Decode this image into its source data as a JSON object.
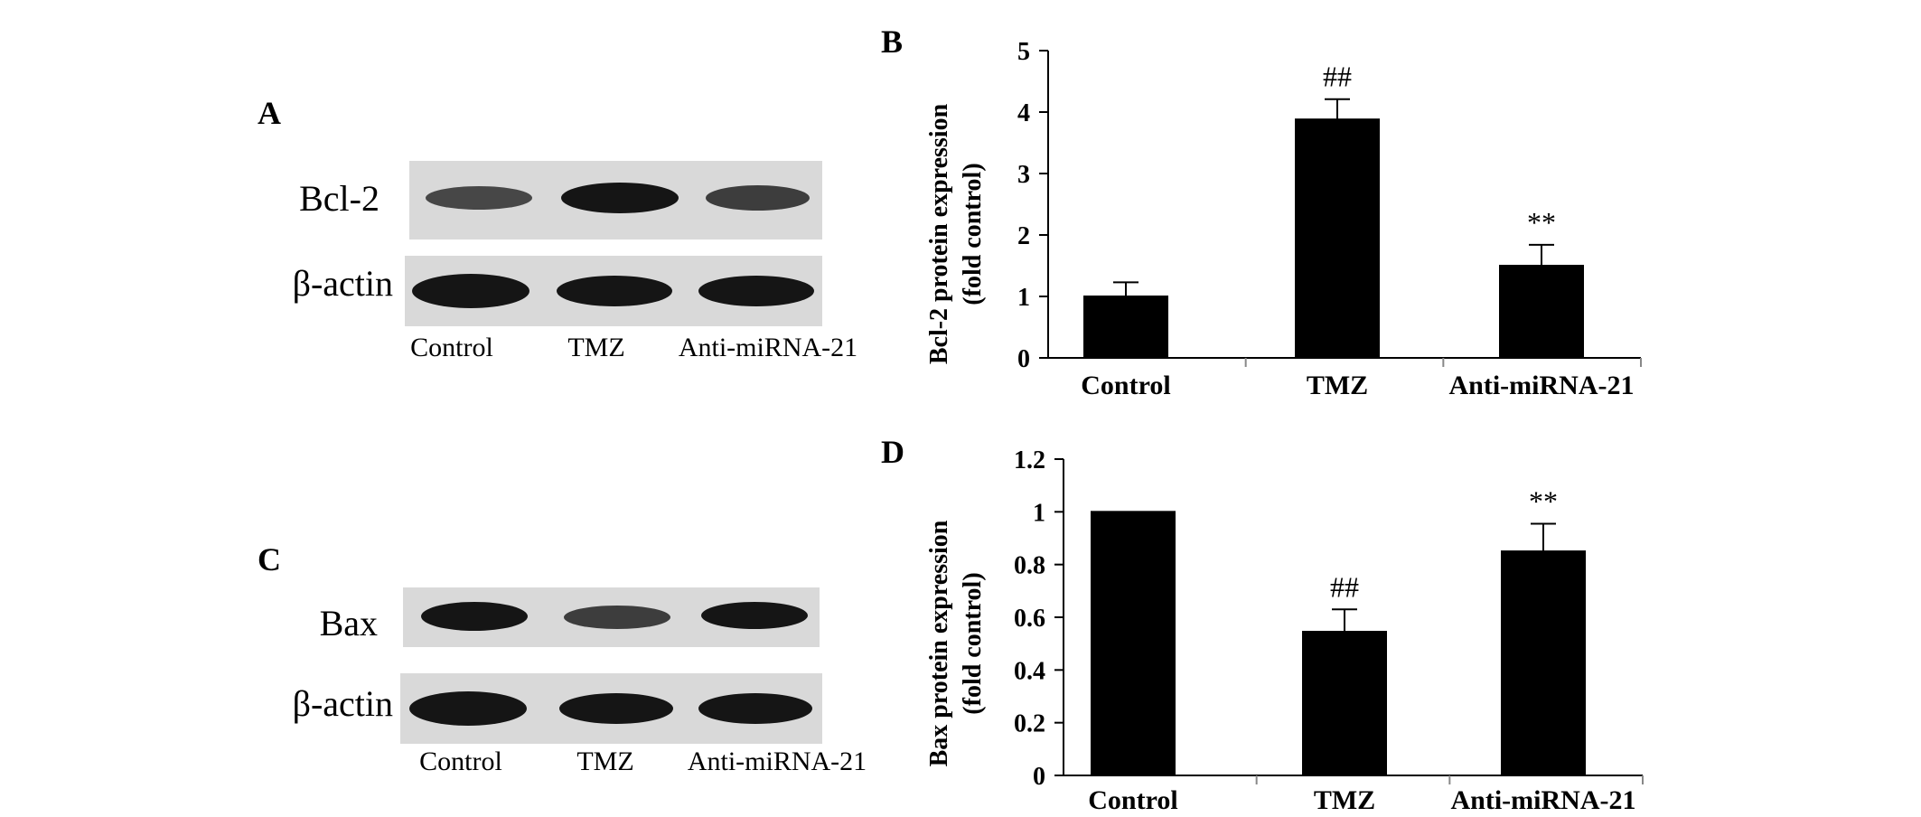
{
  "panels": {
    "a": {
      "letter": "A",
      "protein_label": "Bcl-2",
      "loading_label": "β-actin",
      "lanes": [
        "Control",
        "TMZ",
        "Anti-miRNA-21"
      ]
    },
    "c": {
      "letter": "C",
      "protein_label": "Bax",
      "loading_label": "β-actin",
      "lanes": [
        "Control",
        "TMZ",
        "Anti-miRNA-21"
      ]
    }
  },
  "chart_data": [
    {
      "panel": "B",
      "type": "bar",
      "categories": [
        "Control",
        "TMZ",
        "Anti-miRNA-21"
      ],
      "values": [
        1.0,
        3.88,
        1.5
      ],
      "errors": [
        0.23,
        0.33,
        0.34
      ],
      "annotations": [
        "",
        "##",
        "**"
      ],
      "ylabel": "Bcl-2 protein expression",
      "ylabel2": "(fold control)",
      "ylim": [
        0,
        5
      ],
      "yticks": [
        "0",
        "1",
        "2",
        "3",
        "4",
        "5"
      ],
      "bar_color": "#000000"
    },
    {
      "panel": "D",
      "type": "bar",
      "categories": [
        "Control",
        "TMZ",
        "Anti-miRNA-21"
      ],
      "values": [
        1.0,
        0.545,
        0.85
      ],
      "errors": [
        0,
        0.085,
        0.105
      ],
      "annotations": [
        "",
        "##",
        "**"
      ],
      "ylabel": "Bax protein expression",
      "ylabel2": "(fold control)",
      "ylim": [
        0,
        1.2
      ],
      "yticks": [
        "0",
        "0.2",
        "0.4",
        "0.6",
        "0.8",
        "1",
        "1.2"
      ],
      "bar_color": "#000000"
    }
  ]
}
